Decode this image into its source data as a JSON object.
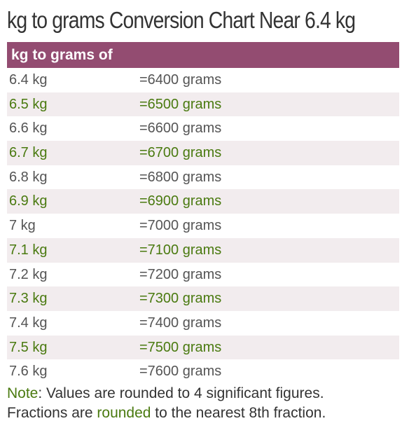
{
  "title": "kg to grams Conversion Chart Near 6.4 kg",
  "table": {
    "header": "kg to grams of",
    "rows": [
      {
        "kg": "6.4 kg",
        "grams": "=6400 grams"
      },
      {
        "kg": "6.5 kg",
        "grams": "=6500 grams"
      },
      {
        "kg": "6.6 kg",
        "grams": "=6600 grams"
      },
      {
        "kg": "6.7 kg",
        "grams": "=6700 grams"
      },
      {
        "kg": "6.8 kg",
        "grams": "=6800 grams"
      },
      {
        "kg": "6.9 kg",
        "grams": "=6900 grams"
      },
      {
        "kg": "7 kg",
        "grams": "=7000 grams"
      },
      {
        "kg": "7.1 kg",
        "grams": "=7100 grams"
      },
      {
        "kg": "7.2 kg",
        "grams": "=7200 grams"
      },
      {
        "kg": "7.3 kg",
        "grams": "=7300 grams"
      },
      {
        "kg": "7.4 kg",
        "grams": "=7400 grams"
      },
      {
        "kg": "7.5 kg",
        "grams": "=7500 grams"
      },
      {
        "kg": "7.6 kg",
        "grams": "=7600 grams"
      }
    ]
  },
  "note": {
    "label": "Note",
    "line1_rest": ": Values are rounded to 4 significant figures.",
    "line2_start": "Fractions are ",
    "line2_link": "rounded",
    "line2_end": " to the nearest 8th fraction."
  },
  "colors": {
    "header_bg": "#934c71",
    "stripe_bg": "#f2ecee",
    "accent_green": "#4a7a10",
    "text_gray": "#555555"
  }
}
